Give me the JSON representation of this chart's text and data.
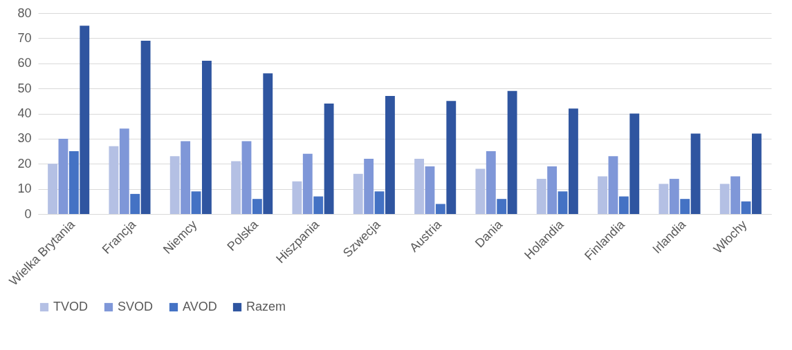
{
  "chart_data": {
    "type": "bar",
    "categories": [
      "Wielka Brytania",
      "Francja",
      "Niemcy",
      "Polska",
      "Hiszpania",
      "Szwecja",
      "Austria",
      "Dania",
      "Holandia",
      "Finlandia",
      "Irlandia",
      "Włochy"
    ],
    "series": [
      {
        "name": "TVOD",
        "color": "#b4c0e4",
        "values": [
          20,
          27,
          23,
          21,
          13,
          16,
          22,
          18,
          14,
          15,
          12,
          12
        ]
      },
      {
        "name": "SVOD",
        "color": "#7f97d8",
        "values": [
          30,
          34,
          29,
          29,
          24,
          22,
          19,
          25,
          19,
          23,
          14,
          15
        ]
      },
      {
        "name": "AVOD",
        "color": "#4472c4",
        "values": [
          25,
          8,
          9,
          6,
          7,
          9,
          4,
          6,
          9,
          7,
          6,
          5
        ]
      },
      {
        "name": "Razem",
        "color": "#2f55a0",
        "values": [
          75,
          69,
          61,
          56,
          44,
          47,
          45,
          49,
          42,
          40,
          32,
          32
        ]
      }
    ],
    "ylim": [
      0,
      80
    ],
    "yticks": [
      0,
      10,
      20,
      30,
      40,
      50,
      60,
      70,
      80
    ],
    "grid": "y",
    "legend": "bottom"
  }
}
